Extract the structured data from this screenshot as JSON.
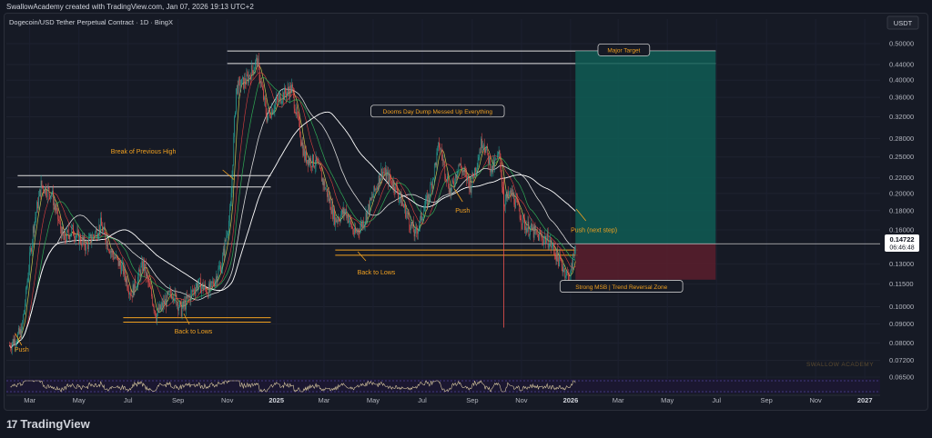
{
  "header": {
    "attribution": "SwallowAcademy created with TradingView.com, Jan 07, 2026 19:13 UTC+2"
  },
  "chart_title": "Dogecoin/USD Tether Perpetual Contract · 1D · BingX",
  "currency": "USDT",
  "brand": "TradingView",
  "watermark": "SWALLOW ACADEMY",
  "current_price": {
    "price": "0.14722",
    "countdown": "06:46:48"
  },
  "colors": {
    "up": "#26a69a",
    "down": "#ef5350",
    "accent": "#f0a020",
    "bg": "#161a25"
  },
  "chart_data": {
    "type": "candlestick",
    "y_scale": "log",
    "ylim": [
      0.065,
      0.52
    ],
    "y_ticks": [
      "0.50000",
      "0.44000",
      "0.40000",
      "0.36000",
      "0.32000",
      "0.28000",
      "0.25000",
      "0.22000",
      "0.20000",
      "0.18000",
      "0.16000",
      "0.13000",
      "0.11500",
      "0.10000",
      "0.09000",
      "0.08000",
      "0.07200",
      "0.06500"
    ],
    "x_ticks": [
      "Mar",
      "May",
      "Jul",
      "Sep",
      "Nov",
      "2025",
      "Mar",
      "May",
      "Jul",
      "Sep",
      "Nov",
      "2026",
      "Mar",
      "May",
      "Jul",
      "Sep",
      "Nov",
      "2027"
    ],
    "x_range": [
      "2024-02-01",
      "2027-01-20"
    ],
    "price_path": [
      [
        "2024-02-05",
        0.079
      ],
      [
        "2024-02-20",
        0.086
      ],
      [
        "2024-03-05",
        0.16
      ],
      [
        "2024-03-15",
        0.21
      ],
      [
        "2024-03-28",
        0.2
      ],
      [
        "2024-04-12",
        0.15
      ],
      [
        "2024-04-22",
        0.16
      ],
      [
        "2024-05-10",
        0.145
      ],
      [
        "2024-05-28",
        0.165
      ],
      [
        "2024-06-10",
        0.14
      ],
      [
        "2024-06-25",
        0.125
      ],
      [
        "2024-07-05",
        0.108
      ],
      [
        "2024-07-20",
        0.13
      ],
      [
        "2024-08-05",
        0.095
      ],
      [
        "2024-08-25",
        0.11
      ],
      [
        "2024-09-05",
        0.098
      ],
      [
        "2024-09-25",
        0.115
      ],
      [
        "2024-10-10",
        0.11
      ],
      [
        "2024-10-25",
        0.13
      ],
      [
        "2024-11-05",
        0.18
      ],
      [
        "2024-11-12",
        0.38
      ],
      [
        "2024-11-25",
        0.4
      ],
      [
        "2024-12-08",
        0.45
      ],
      [
        "2024-12-20",
        0.32
      ],
      [
        "2025-01-05",
        0.36
      ],
      [
        "2025-01-20",
        0.38
      ],
      [
        "2025-02-05",
        0.25
      ],
      [
        "2025-02-20",
        0.24
      ],
      [
        "2025-03-05",
        0.2
      ],
      [
        "2025-03-15",
        0.17
      ],
      [
        "2025-03-28",
        0.18
      ],
      [
        "2025-04-08",
        0.155
      ],
      [
        "2025-04-20",
        0.17
      ],
      [
        "2025-05-12",
        0.23
      ],
      [
        "2025-05-28",
        0.21
      ],
      [
        "2025-06-10",
        0.18
      ],
      [
        "2025-06-22",
        0.155
      ],
      [
        "2025-07-10",
        0.2
      ],
      [
        "2025-07-22",
        0.27
      ],
      [
        "2025-08-05",
        0.2
      ],
      [
        "2025-08-15",
        0.24
      ],
      [
        "2025-08-30",
        0.21
      ],
      [
        "2025-09-14",
        0.28
      ],
      [
        "2025-09-25",
        0.23
      ],
      [
        "2025-10-05",
        0.255
      ],
      [
        "2025-10-10",
        0.19
      ],
      [
        "2025-10-20",
        0.2
      ],
      [
        "2025-11-05",
        0.165
      ],
      [
        "2025-11-20",
        0.155
      ],
      [
        "2025-12-05",
        0.15
      ],
      [
        "2025-12-20",
        0.13
      ],
      [
        "2025-12-31",
        0.118
      ],
      [
        "2026-01-07",
        0.147
      ]
    ],
    "horizontal_levels": [
      {
        "from": "2024-11-01",
        "to": "2026-06-30",
        "y": 0.478
      },
      {
        "from": "2024-11-01",
        "to": "2026-06-30",
        "y": 0.443
      },
      {
        "from": "2024-02-15",
        "to": "2024-12-25",
        "y": 0.223
      },
      {
        "from": "2024-02-15",
        "to": "2024-12-25",
        "y": 0.208
      },
      {
        "from": "2024-06-25",
        "to": "2024-12-25",
        "y": 0.0935
      },
      {
        "from": "2024-06-25",
        "to": "2024-12-25",
        "y": 0.091
      },
      {
        "from": "2025-03-15",
        "to": "2026-01-10",
        "y": 0.1415
      },
      {
        "from": "2025-03-15",
        "to": "2026-01-10",
        "y": 0.137
      }
    ],
    "position": {
      "from": "2026-01-07",
      "to": "2026-06-30",
      "entry": 0.147,
      "target": 0.478,
      "stop": 0.118
    },
    "annotations": [
      {
        "text": "Major Target",
        "date": "2026-03-08",
        "y": 0.48,
        "style": "box"
      },
      {
        "text": "Dooms Day Dump Messed Up Everything",
        "date": "2025-07-20",
        "y": 0.33,
        "style": "box"
      },
      {
        "text": "Strong MSB | Trend Reversal Zone",
        "date": "2026-03-05",
        "y": 0.113,
        "style": "box"
      },
      {
        "text": "Break of Previous High",
        "date": "2024-07-20",
        "y": 0.255,
        "style": "text"
      },
      {
        "text": "Push (next step)",
        "date": "2026-01-30",
        "y": 0.158,
        "style": "text"
      },
      {
        "text": "Push",
        "date": "2025-08-20",
        "y": 0.178,
        "style": "text"
      },
      {
        "text": "Back to Lows",
        "date": "2025-05-05",
        "y": 0.122,
        "style": "text"
      },
      {
        "text": "Back to Lows",
        "date": "2024-09-20",
        "y": 0.085,
        "style": "text"
      },
      {
        "text": "Push",
        "date": "2024-02-20",
        "y": 0.076,
        "style": "text"
      }
    ]
  }
}
